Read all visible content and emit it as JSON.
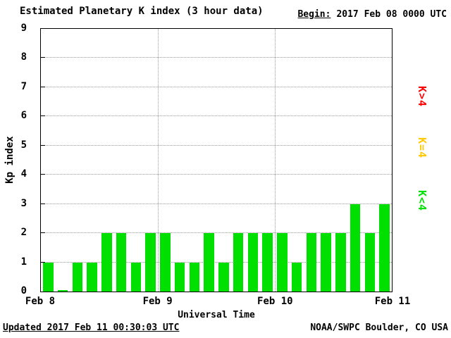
{
  "header": {
    "title": "Estimated Planetary K index (3 hour data)",
    "begin_label": "Begin:",
    "begin_value": "2017 Feb 08 0000 UTC"
  },
  "chart_data": {
    "type": "bar",
    "title": "Estimated Planetary K index (3 hour data)",
    "ylabel": "Kp index",
    "xlabel": "Universal Time",
    "ylim": [
      0,
      9
    ],
    "y_ticks": [
      0,
      1,
      2,
      3,
      4,
      5,
      6,
      7,
      8,
      9
    ],
    "x_ticks": [
      "Feb 8",
      "Feb 9",
      "Feb 10",
      "Feb 11"
    ],
    "bin_hours": 3,
    "values": [
      1,
      0,
      1,
      1,
      2,
      2,
      1,
      2,
      2,
      1,
      1,
      2,
      1,
      2,
      2,
      2,
      2,
      1,
      2,
      2,
      2,
      3,
      2,
      3
    ],
    "bar_color": "#00E000",
    "grid": true,
    "legend_position": "right"
  },
  "legend": {
    "items": [
      {
        "label": "K>4",
        "color": "#FF0000"
      },
      {
        "label": "K=4",
        "color": "#FFC800"
      },
      {
        "label": "K<4",
        "color": "#00E000"
      }
    ]
  },
  "footer": {
    "updated": "Updated 2017 Feb 11 00:30:03 UTC",
    "source": "NOAA/SWPC Boulder, CO USA"
  }
}
